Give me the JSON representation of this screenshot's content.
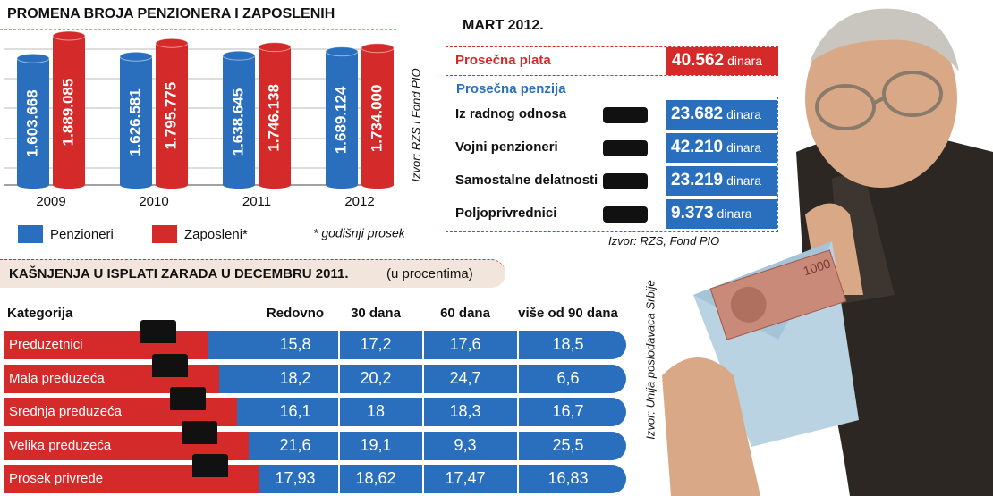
{
  "chart_data": {
    "type": "bar",
    "title": "PROMENA BROJA PENZIONERA I ZAPOSLENIH",
    "categories": [
      "2009",
      "2010",
      "2011",
      "2012"
    ],
    "series": [
      {
        "name": "Penzioneri",
        "color": "#2a6fbd",
        "values": [
          1603668,
          1626581,
          1638645,
          1689124
        ],
        "value_labels": [
          "1.603.668",
          "1.626.581",
          "1.638.645",
          "1.689.124"
        ]
      },
      {
        "name": "Zaposleni*",
        "color": "#d42a2a",
        "values": [
          1889085,
          1795775,
          1746138,
          1734000
        ],
        "value_labels": [
          "1.889.085",
          "1.795.775",
          "1.746.138",
          "1.734.000"
        ]
      }
    ],
    "note": "* godišnji prosek",
    "source": "Izvor: RZS i Fond PIO"
  },
  "salaries": {
    "title": "MART 2012.",
    "average_salary": {
      "label": "Prosečna plata",
      "value": "40.562",
      "unit": "dinara"
    },
    "pension_title": "Prosečna penzija",
    "pensions": [
      {
        "label": "Iz radnog odnosa",
        "value": "23.682",
        "unit": "dinara"
      },
      {
        "label": "Vojni penzioneri",
        "value": "42.210",
        "unit": "dinara"
      },
      {
        "label": "Samostalne delatnosti",
        "value": "23.219",
        "unit": "dinara"
      },
      {
        "label": "Poljoprivrednici",
        "value": "9.373",
        "unit": "dinara"
      }
    ],
    "source": "Izvor: RZS, Fond PIO"
  },
  "delays": {
    "title": "KAŠNJENJA U ISPLATI ZARADA U DECEMBRU 2011.",
    "subtitle": "(u procentima)",
    "columns": [
      "Kategorija",
      "Redovno",
      "30 dana",
      "60 dana",
      "više od 90 dana"
    ],
    "rows": [
      [
        "Preduzetnici",
        "15,8",
        "17,2",
        "17,6",
        "18,5"
      ],
      [
        "Mala preduzeća",
        "18,2",
        "20,2",
        "24,7",
        "6,6"
      ],
      [
        "Srednja preduzeća",
        "16,1",
        "18",
        "18,3",
        "16,7"
      ],
      [
        "Velika preduzeća",
        "21,6",
        "19,1",
        "9,3",
        "25,5"
      ],
      [
        "Prosek privrede",
        "17,93",
        "18,62",
        "17,47",
        "16,83"
      ]
    ],
    "source": "Izvor: Unija poslodavaca Srbije"
  }
}
